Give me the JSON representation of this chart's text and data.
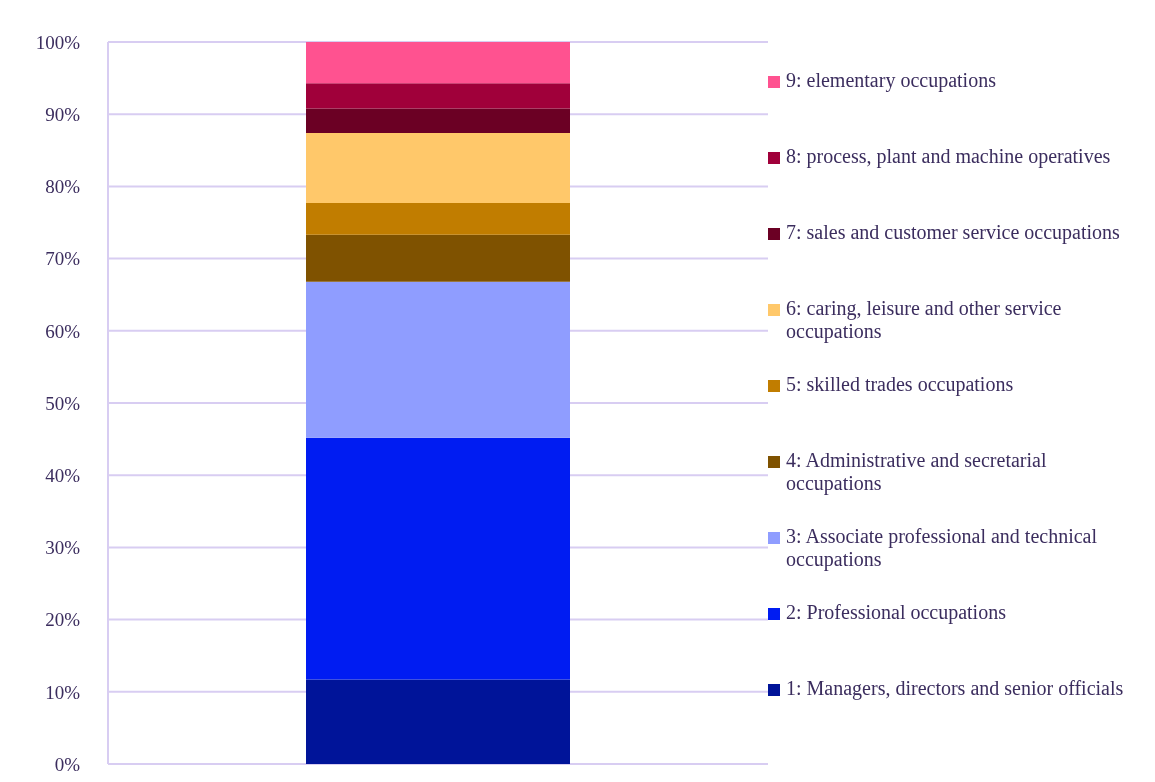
{
  "chart_data": {
    "type": "bar",
    "stacked": true,
    "categories": [
      null
    ],
    "series": [
      {
        "name": "1: Managers, directors and senior officials",
        "color": "#001499",
        "values": [
          11.7
        ]
      },
      {
        "name": "2: Professional occupations",
        "color": "#001cf2",
        "values": [
          33.5
        ]
      },
      {
        "name": "3: Associate professional and technical occupations",
        "color": "#8f9dff",
        "values": [
          21.6
        ]
      },
      {
        "name": "4: Administrative and secretarial occupations",
        "color": "#7f5200",
        "values": [
          6.5
        ]
      },
      {
        "name": "5: skilled trades occupations",
        "color": "#c17d00",
        "values": [
          4.4
        ]
      },
      {
        "name": "6: caring, leisure and other service occupations",
        "color": "#ffc86a",
        "values": [
          9.7
        ]
      },
      {
        "name": "7: sales and customer service occupations",
        "color": "#6b0024",
        "values": [
          3.4
        ]
      },
      {
        "name": "8: process, plant and machine operatives",
        "color": "#a0003a",
        "values": [
          3.5
        ]
      },
      {
        "name": "9: elementary occupations",
        "color": "#ff5290",
        "values": [
          5.7
        ]
      }
    ],
    "ylim": [
      0,
      100
    ],
    "yticks": [
      {
        "value": 0,
        "label": "0%"
      },
      {
        "value": 10,
        "label": "10%"
      },
      {
        "value": 20,
        "label": "20%"
      },
      {
        "value": 30,
        "label": "30%"
      },
      {
        "value": 40,
        "label": "40%"
      },
      {
        "value": 50,
        "label": "50%"
      },
      {
        "value": 60,
        "label": "60%"
      },
      {
        "value": 70,
        "label": "70%"
      },
      {
        "value": 80,
        "label": "80%"
      },
      {
        "value": 90,
        "label": "90%"
      },
      {
        "value": 100,
        "label": "100%"
      }
    ],
    "grid": "y",
    "legend": "right"
  }
}
